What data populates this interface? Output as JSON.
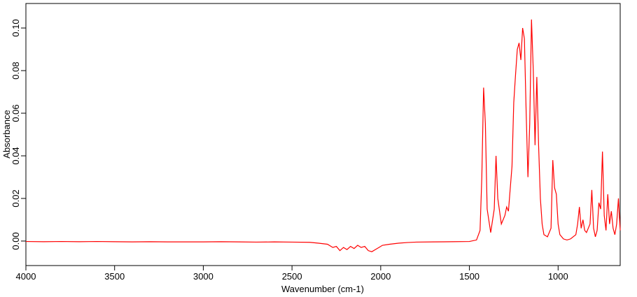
{
  "chart_data": {
    "type": "line",
    "x_label": "Wavenumber (cm-1)",
    "y_label": "Absorbance",
    "xlim": [
      4000,
      650
    ],
    "ylim": [
      -0.0115,
      0.1115
    ],
    "xticks": [
      4000,
      3500,
      3000,
      2500,
      2000,
      1500,
      1000
    ],
    "yticks": [
      {
        "value": 0,
        "label": "0.00"
      },
      {
        "value": 0.02,
        "label": "0.02"
      },
      {
        "value": 0.04,
        "label": "0.04"
      },
      {
        "value": 0.06,
        "label": "0.06"
      },
      {
        "value": 0.08,
        "label": "0.08"
      },
      {
        "value": 0.1,
        "label": "0.10"
      }
    ],
    "color": "#ff0000",
    "x": [
      4000,
      3900,
      3800,
      3700,
      3600,
      3500,
      3400,
      3300,
      3200,
      3100,
      3000,
      2900,
      2800,
      2700,
      2600,
      2500,
      2400,
      2350,
      2300,
      2270,
      2250,
      2230,
      2210,
      2190,
      2170,
      2150,
      2130,
      2110,
      2090,
      2070,
      2050,
      2030,
      2010,
      1990,
      1950,
      1900,
      1850,
      1800,
      1700,
      1600,
      1500,
      1460,
      1440,
      1430,
      1420,
      1410,
      1400,
      1380,
      1360,
      1350,
      1340,
      1320,
      1300,
      1290,
      1280,
      1260,
      1250,
      1240,
      1230,
      1220,
      1210,
      1200,
      1190,
      1180,
      1170,
      1160,
      1150,
      1140,
      1130,
      1120,
      1110,
      1100,
      1090,
      1080,
      1060,
      1040,
      1030,
      1020,
      1010,
      1000,
      990,
      970,
      950,
      930,
      900,
      890,
      880,
      870,
      860,
      850,
      840,
      820,
      810,
      800,
      790,
      780,
      770,
      760,
      750,
      740,
      730,
      720,
      710,
      700,
      690,
      680,
      670,
      660,
      655,
      650
    ],
    "values": [
      -0.0002,
      -0.0003,
      -0.0002,
      -0.0003,
      -0.0002,
      -0.0003,
      -0.0004,
      -0.0003,
      -0.0004,
      -0.0004,
      -0.0004,
      -0.0003,
      -0.0004,
      -0.0005,
      -0.0004,
      -0.0005,
      -0.0006,
      -0.001,
      -0.0015,
      -0.003,
      -0.0025,
      -0.0045,
      -0.003,
      -0.004,
      -0.0025,
      -0.0035,
      -0.002,
      -0.003,
      -0.0025,
      -0.0045,
      -0.005,
      -0.004,
      -0.003,
      -0.002,
      -0.0015,
      -0.001,
      -0.0007,
      -0.0005,
      -0.0004,
      -0.0003,
      -0.0002,
      0.0005,
      0.005,
      0.03,
      0.072,
      0.055,
      0.015,
      0.004,
      0.015,
      0.04,
      0.02,
      0.008,
      0.012,
      0.016,
      0.014,
      0.035,
      0.065,
      0.078,
      0.09,
      0.093,
      0.085,
      0.1,
      0.095,
      0.06,
      0.03,
      0.055,
      0.104,
      0.08,
      0.045,
      0.077,
      0.045,
      0.02,
      0.008,
      0.003,
      0.002,
      0.006,
      0.038,
      0.025,
      0.022,
      0.008,
      0.003,
      0.001,
      0.0005,
      0.001,
      0.003,
      0.008,
      0.016,
      0.006,
      0.01,
      0.005,
      0.004,
      0.008,
      0.024,
      0.006,
      0.002,
      0.005,
      0.018,
      0.015,
      0.042,
      0.012,
      0.005,
      0.022,
      0.008,
      0.014,
      0.006,
      0.003,
      0.008,
      0.02,
      0.012,
      0.005
    ]
  }
}
